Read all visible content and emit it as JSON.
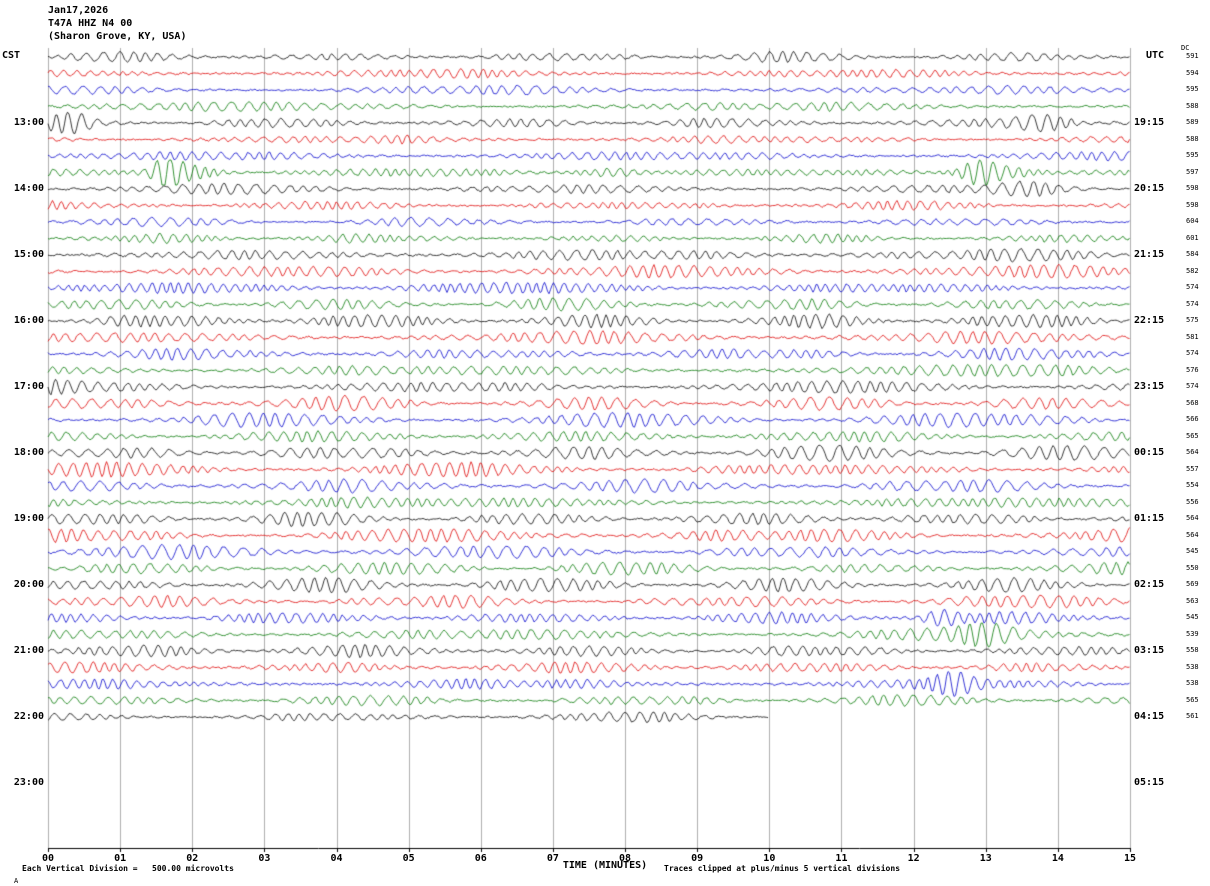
{
  "header": {
    "date": "Jan17,2026",
    "station": "T47A HHZ N4 00",
    "location": "(Sharon Grove, KY, USA)"
  },
  "axes": {
    "left": "CST",
    "right": "UTC"
  },
  "footer": {
    "scale_text": "Each Vertical Division =   500.00 microvolts",
    "clip_text": "Traces clipped at plus/minus 5 vertical divisions",
    "watermark": "A"
  },
  "chart_data": {
    "type": "line",
    "subtype": "helicorder-seismogram",
    "title": "T47A HHZ N4 00 (Sharon Grove, KY, USA) Jan17,2026",
    "xlabel": "TIME (MINUTES)",
    "x_range": [
      0,
      15
    ],
    "minutes_per_row": 15,
    "rows_per_hour": 4,
    "grid": true,
    "x_ticks": [
      "00",
      "01",
      "02",
      "03",
      "04",
      "05",
      "06",
      "07",
      "08",
      "09",
      "10",
      "11",
      "12",
      "13",
      "14",
      "15"
    ],
    "colors": {
      "black": "#000000",
      "red": "#dd0000",
      "blue": "#0000cc",
      "green": "#007700"
    },
    "trace_color_cycle": [
      "black",
      "red",
      "blue",
      "green"
    ],
    "dc_header": "DC",
    "dc_offsets": [
      591,
      594,
      595,
      588,
      589,
      588,
      595,
      597,
      598,
      598,
      604,
      601,
      584,
      582,
      574,
      574,
      575,
      581,
      574,
      576,
      574,
      568,
      566,
      565,
      564,
      557,
      554,
      556,
      564,
      564,
      545,
      550,
      569,
      563,
      545,
      539,
      558,
      538,
      538,
      565,
      561
    ],
    "left_labels": [
      {
        "row": 4,
        "text": "13:00"
      },
      {
        "row": 8,
        "text": "14:00"
      },
      {
        "row": 12,
        "text": "15:00"
      },
      {
        "row": 16,
        "text": "16:00"
      },
      {
        "row": 20,
        "text": "17:00"
      },
      {
        "row": 24,
        "text": "18:00"
      },
      {
        "row": 28,
        "text": "19:00"
      },
      {
        "row": 32,
        "text": "20:00"
      },
      {
        "row": 36,
        "text": "21:00"
      },
      {
        "row": 40,
        "text": "22:00"
      },
      {
        "row": 44,
        "text": "23:00"
      }
    ],
    "right_labels": [
      {
        "row": 4,
        "text": "19:15"
      },
      {
        "row": 8,
        "text": "20:15"
      },
      {
        "row": 12,
        "text": "21:15"
      },
      {
        "row": 16,
        "text": "22:15"
      },
      {
        "row": 20,
        "text": "23:15"
      },
      {
        "row": 24,
        "text": "00:15"
      },
      {
        "row": 28,
        "text": "01:15"
      },
      {
        "row": 32,
        "text": "02:15"
      },
      {
        "row": 36,
        "text": "03:15"
      },
      {
        "row": 40,
        "text": "04:15"
      },
      {
        "row": 44,
        "text": "05:15"
      }
    ],
    "rows": [
      {
        "index": 0,
        "color": "black",
        "amp": 4.2
      },
      {
        "index": 1,
        "color": "red",
        "amp": 4.0
      },
      {
        "index": 2,
        "color": "blue",
        "amp": 3.8
      },
      {
        "index": 3,
        "color": "green",
        "amp": 3.6
      },
      {
        "index": 4,
        "color": "black",
        "amp": 4.2
      },
      {
        "index": 5,
        "color": "red",
        "amp": 3.8
      },
      {
        "index": 6,
        "color": "blue",
        "amp": 3.5
      },
      {
        "index": 7,
        "color": "green",
        "amp": 3.4
      },
      {
        "index": 8,
        "color": "black",
        "amp": 4.0
      },
      {
        "index": 9,
        "color": "red",
        "amp": 3.8
      },
      {
        "index": 10,
        "color": "blue",
        "amp": 3.6
      },
      {
        "index": 11,
        "color": "green",
        "amp": 3.8
      },
      {
        "index": 12,
        "color": "black",
        "amp": 5.2
      },
      {
        "index": 13,
        "color": "red",
        "amp": 5.5
      },
      {
        "index": 14,
        "color": "blue",
        "amp": 5.0
      },
      {
        "index": 15,
        "color": "green",
        "amp": 5.2
      },
      {
        "index": 16,
        "color": "black",
        "amp": 5.8
      },
      {
        "index": 17,
        "color": "red",
        "amp": 5.5
      },
      {
        "index": 18,
        "color": "blue",
        "amp": 5.6
      },
      {
        "index": 19,
        "color": "green",
        "amp": 5.4
      },
      {
        "index": 20,
        "color": "black",
        "amp": 6.0
      },
      {
        "index": 21,
        "color": "red",
        "amp": 5.6
      },
      {
        "index": 22,
        "color": "blue",
        "amp": 5.4
      },
      {
        "index": 23,
        "color": "green",
        "amp": 5.6
      },
      {
        "index": 24,
        "color": "black",
        "amp": 6.2
      },
      {
        "index": 25,
        "color": "red",
        "amp": 6.0
      },
      {
        "index": 26,
        "color": "blue",
        "amp": 5.8
      },
      {
        "index": 27,
        "color": "green",
        "amp": 5.6
      },
      {
        "index": 28,
        "color": "black",
        "amp": 6.0
      },
      {
        "index": 29,
        "color": "red",
        "amp": 5.8
      },
      {
        "index": 30,
        "color": "blue",
        "amp": 5.6
      },
      {
        "index": 31,
        "color": "green",
        "amp": 5.4
      },
      {
        "index": 32,
        "color": "black",
        "amp": 5.4
      },
      {
        "index": 33,
        "color": "red",
        "amp": 5.2
      },
      {
        "index": 34,
        "color": "blue",
        "amp": 5.0
      },
      {
        "index": 35,
        "color": "green",
        "amp": 5.2
      },
      {
        "index": 36,
        "color": "black",
        "amp": 5.0
      },
      {
        "index": 37,
        "color": "red",
        "amp": 4.6
      },
      {
        "index": 38,
        "color": "blue",
        "amp": 4.4
      },
      {
        "index": 39,
        "color": "green",
        "amp": 4.4
      },
      {
        "index": 40,
        "color": "black",
        "amp": 3.8,
        "end_minute": 10
      }
    ],
    "events": {
      "4": [
        {
          "m": 0.35,
          "a": 7,
          "s": 0.2
        },
        {
          "m": 13.8,
          "a": 8,
          "s": 0.3
        }
      ],
      "7": [
        {
          "m": 1.65,
          "a": 13,
          "s": 0.15
        },
        {
          "m": 1.95,
          "a": 7,
          "s": 0.3
        },
        {
          "m": 7.8,
          "a": 4,
          "s": 0.3
        },
        {
          "m": 12.9,
          "a": 10,
          "s": 0.2
        },
        {
          "m": 13.25,
          "a": 5,
          "s": 0.3
        }
      ],
      "8": [
        {
          "m": 13.6,
          "a": 6,
          "s": 0.35
        }
      ],
      "34": [
        {
          "m": 12.4,
          "a": 7,
          "s": 0.2
        }
      ],
      "35": [
        {
          "m": 13.0,
          "a": 7,
          "s": 0.25
        }
      ],
      "38": [
        {
          "m": 12.55,
          "a": 8,
          "s": 0.2
        }
      ]
    },
    "clipping_note": "plus/minus 5 vertical divisions",
    "vertical_division": "500.00 microvolts"
  }
}
